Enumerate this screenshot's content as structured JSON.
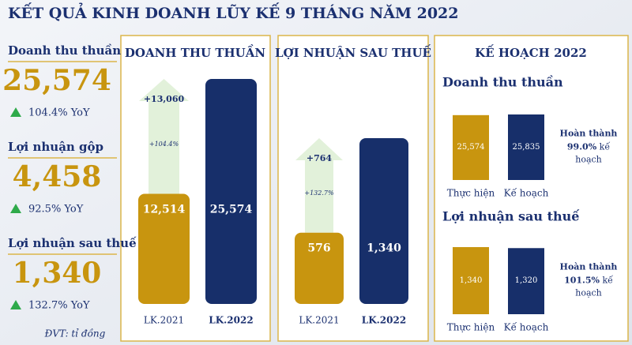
{
  "title": "KẾT QUẢ KINH DOANH LŨY KẾ 9 THÁNG NĂM 2022",
  "kpis": [
    {
      "label": "Doanh thu thuần",
      "value": "25,574",
      "change": "104.4% YoY"
    },
    {
      "label": "Lợi nhuận gộp",
      "value": "4,458",
      "change": "92.5% YoY"
    },
    {
      "label": "Lợi nhuận sau thuế",
      "value": "1,340",
      "change": "132.7% YoY"
    }
  ],
  "unit_note": "ĐVT: tỉ đồng",
  "plan": {
    "title": "KẾ HOẠCH 2022"
  },
  "chart_data": [
    {
      "type": "bar",
      "title": "DOANH THU THUẦN",
      "categories": [
        "LK.2021",
        "LK.2022"
      ],
      "values": [
        12514,
        25574
      ],
      "value_labels": [
        "12,514",
        "25,574"
      ],
      "colors": [
        "#c8950f",
        "#172f6a"
      ],
      "change": {
        "value": 13060,
        "label": "+13,060"
      },
      "change_pct": {
        "value": 104.4,
        "label": "+104.4%"
      }
    },
    {
      "type": "bar",
      "title": "LỢI NHUẬN SAU THUẾ",
      "categories": [
        "LK.2021",
        "LK.2022"
      ],
      "values": [
        576,
        1340
      ],
      "value_labels": [
        "576",
        "1,340"
      ],
      "colors": [
        "#c8950f",
        "#172f6a"
      ],
      "change": {
        "value": 764,
        "label": "+764"
      },
      "change_pct": {
        "value": 132.7,
        "label": "+132.7%"
      }
    },
    {
      "type": "plan-bar",
      "title": "Doanh thu thuần",
      "categories": [
        "Thực hiện",
        "Kế hoạch"
      ],
      "values": [
        25574,
        25835
      ],
      "value_labels": [
        "25,574",
        "25,835"
      ],
      "colors": [
        "#c8950f",
        "#172f6a"
      ],
      "note": [
        "Hoàn thành",
        "99.0%",
        "kế",
        "hoạch"
      ]
    },
    {
      "type": "plan-bar",
      "title": "Lợi nhuận sau thuế",
      "categories": [
        "Thực hiện",
        "Kế hoạch"
      ],
      "values": [
        1340,
        1320
      ],
      "value_labels": [
        "1,340",
        "1,320"
      ],
      "colors": [
        "#c8950f",
        "#172f6a"
      ],
      "note": [
        "Hoàn thành",
        "101.5%",
        "kế",
        "hoạch"
      ]
    }
  ]
}
